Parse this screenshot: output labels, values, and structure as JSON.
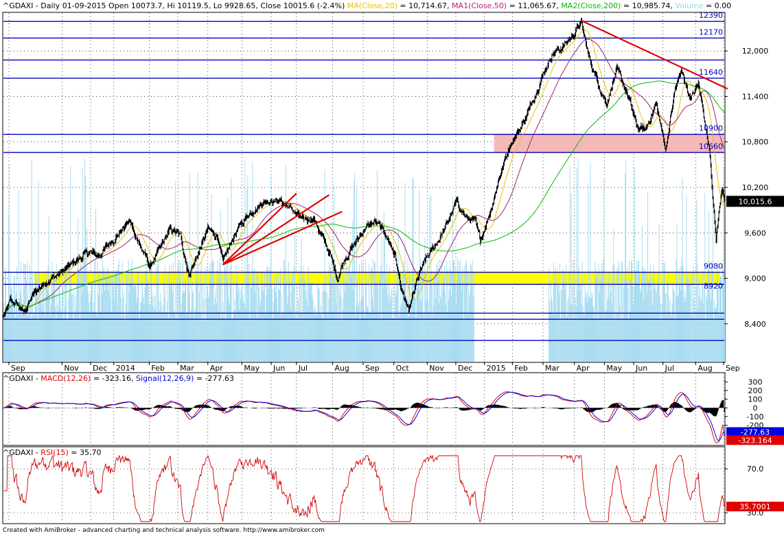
{
  "header": {
    "symbol": "^GDAXI",
    "info": " - Daily 01-09-2015 Open 10073.7, Hi 10119.5, Lo 9928.65, Close 10015.6 (-2.4%) ",
    "ma20_label": "MA(Close,20)",
    "ma20_value": " = 10,714.67, ",
    "ma50_label": "MA1(Close,50)",
    "ma50_value": " = 11,065.67, ",
    "ma200_label": "MA2(Close,200)",
    "ma200_value": " = 10,985.74, ",
    "volume_label": "Volume",
    "volume_value": " = 0.00"
  },
  "macd_header": {
    "symbol": "^GDAXI - ",
    "macd_label": "MACD(12,26)",
    "macd_value": " = -323.16, ",
    "signal_label": "Signal(12,26,9)",
    "signal_value": " = -277.63"
  },
  "rsi_header": {
    "symbol": "^GDAXI - ",
    "rsi_label": "RSI(15)",
    "rsi_value": " = 35.70"
  },
  "footer": "Created with AmiBroker - advanced charting and technical analysis software. http://www.amibroker.com",
  "colors": {
    "ma20": "#e8c000",
    "ma50": "#a0206a",
    "ma200": "#00bb00",
    "volume": "#a8dcf0",
    "hline": "#0000c0",
    "trend": "#e00000",
    "zone_yellow": "#ffff00",
    "zone_pink": "#f5b8b8",
    "macd": "#e00000",
    "signal": "#0000e0"
  },
  "chart_data": [
    {
      "type": "line",
      "name": "price",
      "y_ticks": [
        8400,
        9000,
        9600,
        10200,
        10800,
        11400,
        12000
      ],
      "y_tick_labels": [
        "8,400",
        "9,000",
        "9,600",
        "10,200",
        "10,800",
        "11,400",
        "12,000"
      ],
      "ylim": [
        7900,
        12500
      ],
      "x_tick_labels": [
        "Sep",
        "Nov",
        "Dec",
        "2014",
        "Feb",
        "Mar",
        "Apr",
        "May",
        "Jun",
        "Jul",
        "Aug",
        "Sep",
        "Oct",
        "Nov",
        "Dec",
        "2015",
        "Feb",
        "Mar",
        "Apr",
        "May",
        "Jun",
        "Jul",
        "Aug",
        "Sep"
      ],
      "horizontal_levels": [
        12390,
        12170,
        11640,
        10900,
        10660,
        9080,
        8920
      ],
      "horizontal_level_labels": [
        "12390",
        "12170",
        "11640",
        "10900",
        "10660",
        "9080",
        "8920"
      ],
      "extra_levels": [
        11880,
        8540,
        8460,
        8180
      ],
      "current_price_label": "10,015.6",
      "anchors": [
        [
          0,
          8500
        ],
        [
          10,
          8700
        ],
        [
          20,
          8650
        ],
        [
          30,
          8550
        ],
        [
          45,
          8800
        ],
        [
          60,
          8950
        ],
        [
          80,
          9050
        ],
        [
          95,
          9150
        ],
        [
          110,
          9250
        ],
        [
          125,
          9350
        ],
        [
          140,
          9300
        ],
        [
          155,
          9450
        ],
        [
          170,
          9600
        ],
        [
          185,
          9750
        ],
        [
          200,
          9450
        ],
        [
          215,
          9150
        ],
        [
          230,
          9400
        ],
        [
          245,
          9650
        ],
        [
          260,
          9550
        ],
        [
          272,
          9050
        ],
        [
          285,
          9300
        ],
        [
          300,
          9650
        ],
        [
          315,
          9550
        ],
        [
          322,
          9200
        ],
        [
          340,
          9600
        ],
        [
          360,
          9850
        ],
        [
          380,
          10000
        ],
        [
          395,
          10050
        ],
        [
          410,
          10000
        ],
        [
          425,
          9900
        ],
        [
          440,
          9750
        ],
        [
          455,
          9800
        ],
        [
          470,
          9500
        ],
        [
          480,
          9300
        ],
        [
          490,
          9000
        ],
        [
          500,
          9250
        ],
        [
          515,
          9450
        ],
        [
          530,
          9650
        ],
        [
          545,
          9750
        ],
        [
          560,
          9600
        ],
        [
          575,
          9300
        ],
        [
          585,
          8800
        ],
        [
          595,
          8550
        ],
        [
          608,
          9000
        ],
        [
          620,
          9250
        ],
        [
          635,
          9450
        ],
        [
          650,
          9700
        ],
        [
          665,
          10000
        ],
        [
          680,
          9800
        ],
        [
          692,
          9750
        ],
        [
          700,
          9500
        ],
        [
          715,
          9900
        ],
        [
          730,
          10400
        ],
        [
          745,
          10800
        ],
        [
          760,
          11000
        ],
        [
          775,
          11300
        ],
        [
          790,
          11650
        ],
        [
          805,
          11950
        ],
        [
          820,
          12050
        ],
        [
          835,
          12200
        ],
        [
          848,
          12380
        ],
        [
          860,
          11900
        ],
        [
          872,
          11600
        ],
        [
          885,
          11300
        ],
        [
          900,
          11750
        ],
        [
          915,
          11450
        ],
        [
          930,
          11000
        ],
        [
          942,
          10950
        ],
        [
          958,
          11300
        ],
        [
          972,
          10700
        ],
        [
          985,
          11450
        ],
        [
          995,
          11750
        ],
        [
          1008,
          11350
        ],
        [
          1020,
          11600
        ],
        [
          1030,
          11000
        ],
        [
          1036,
          10700
        ],
        [
          1042,
          10000
        ],
        [
          1046,
          9500
        ],
        [
          1050,
          9900
        ],
        [
          1055,
          10250
        ],
        [
          1058,
          10015
        ]
      ],
      "volume_base": 8000
    },
    {
      "type": "line",
      "name": "macd",
      "y_ticks": [
        300,
        200,
        100,
        0,
        -100,
        -200
      ],
      "y_tick_labels": [
        "300",
        "200",
        "100",
        "0",
        "-100",
        "-200"
      ],
      "ylim": [
        -400,
        350
      ],
      "macd_last_label": "-323.164",
      "signal_last_label": "-277.63"
    },
    {
      "type": "line",
      "name": "rsi",
      "y_ticks": [
        70,
        30
      ],
      "y_tick_labels": [
        "70.0",
        "30.0"
      ],
      "ylim": [
        22,
        82
      ],
      "last_label": "35.7001"
    }
  ]
}
